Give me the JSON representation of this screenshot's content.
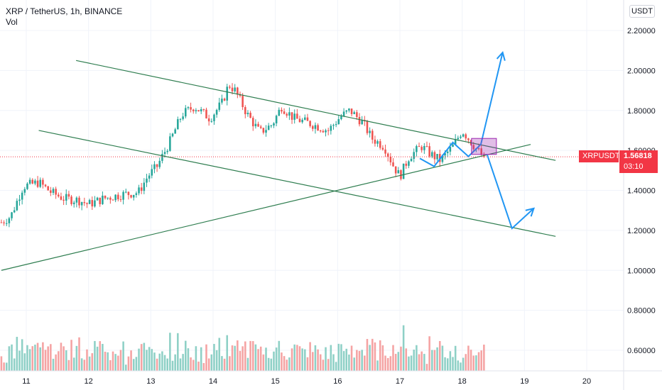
{
  "header": {
    "title": "XRP / TetherUS, 1h, BINANCE",
    "indicator": "Vol"
  },
  "currency_button": "USDT",
  "last_price": {
    "symbol": "XRPUSDT",
    "price": "1.56818",
    "countdown": "03:10",
    "color": "#f23645"
  },
  "colors": {
    "up": "#26a69a",
    "down": "#ef5350",
    "vol_up": "#8ed0c6",
    "vol_down": "#f5a3a3",
    "trendline": "#2e7d4f",
    "projection": "#2196f3",
    "box": "#9c27b0"
  },
  "chart_data": {
    "type": "candlestick",
    "title": "XRP / TetherUS, 1h, BINANCE",
    "y_axis": {
      "ticks": [
        "2.20000",
        "2.00000",
        "1.80000",
        "1.60000",
        "1.40000",
        "1.20000",
        "1.00000",
        "0.80000",
        "0.60000"
      ],
      "min": 0.5,
      "max": 2.27
    },
    "x_axis": {
      "ticks": [
        "11",
        "12",
        "13",
        "14",
        "15",
        "16",
        "17",
        "18",
        "19",
        "20"
      ],
      "day_start": 10.6,
      "day_end": 20.6
    },
    "anchors": [
      [
        10.6,
        1.24
      ],
      [
        10.75,
        1.27
      ],
      [
        10.95,
        1.42
      ],
      [
        11.2,
        1.44
      ],
      [
        11.4,
        1.39
      ],
      [
        11.6,
        1.36
      ],
      [
        11.85,
        1.35
      ],
      [
        12.0,
        1.33
      ],
      [
        12.25,
        1.36
      ],
      [
        12.55,
        1.38
      ],
      [
        12.8,
        1.39
      ],
      [
        12.95,
        1.47
      ],
      [
        13.1,
        1.52
      ],
      [
        13.3,
        1.64
      ],
      [
        13.5,
        1.78
      ],
      [
        13.7,
        1.82
      ],
      [
        13.95,
        1.76
      ],
      [
        14.15,
        1.84
      ],
      [
        14.25,
        1.93
      ],
      [
        14.35,
        1.9
      ],
      [
        14.55,
        1.78
      ],
      [
        14.75,
        1.69
      ],
      [
        14.95,
        1.73
      ],
      [
        15.1,
        1.82
      ],
      [
        15.3,
        1.76
      ],
      [
        15.6,
        1.73
      ],
      [
        15.85,
        1.7
      ],
      [
        16.05,
        1.77
      ],
      [
        16.2,
        1.8
      ],
      [
        16.4,
        1.74
      ],
      [
        16.55,
        1.66
      ],
      [
        16.75,
        1.62
      ],
      [
        16.9,
        1.52
      ],
      [
        17.0,
        1.47
      ],
      [
        17.15,
        1.57
      ],
      [
        17.35,
        1.62
      ],
      [
        17.5,
        1.58
      ],
      [
        17.65,
        1.55
      ],
      [
        17.85,
        1.62
      ],
      [
        18.0,
        1.7
      ],
      [
        18.15,
        1.64
      ],
      [
        18.3,
        1.58
      ],
      [
        18.35,
        1.568
      ]
    ],
    "volume_max": 0.96,
    "last_price": 1.56818,
    "annotations": {
      "trendlines": [
        {
          "from": [
            11.8,
            2.05
          ],
          "to": [
            19.5,
            1.55
          ]
        },
        {
          "from": [
            11.2,
            1.7
          ],
          "to": [
            19.5,
            1.17
          ]
        },
        {
          "from": [
            10.6,
            1.0
          ],
          "to": [
            19.1,
            1.63
          ]
        }
      ],
      "projection_path": [
        [
          17.32,
          1.56
        ],
        [
          17.55,
          1.52
        ],
        [
          17.85,
          1.64
        ],
        [
          18.1,
          1.57
        ],
        [
          18.3,
          1.63
        ],
        [
          18.65,
          2.09
        ]
      ],
      "projection_down": [
        [
          18.4,
          1.58
        ],
        [
          18.8,
          1.21
        ],
        [
          19.15,
          1.31
        ]
      ],
      "box": {
        "x": [
          18.15,
          18.55
        ],
        "y": [
          1.58,
          1.66
        ]
      }
    }
  }
}
